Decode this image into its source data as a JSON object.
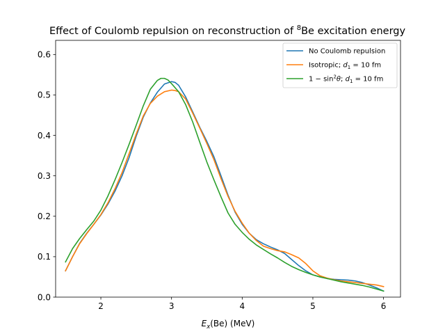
{
  "chart_data": {
    "type": "line",
    "title_main": "Effect of Coulomb repulsion on reconstruction of ",
    "title_sup": "8",
    "title_tail": "Be excitation energy",
    "xlabel_var": "E",
    "xlabel_sub": "x",
    "xlabel_tail": "(Be) (MeV)",
    "xlim": [
      1.36,
      6.24
    ],
    "ylim": [
      0.0,
      0.635
    ],
    "xticks": [
      2,
      3,
      4,
      5,
      6
    ],
    "xtick_labels": [
      "2",
      "3",
      "4",
      "5",
      "6"
    ],
    "yticks": [
      0.0,
      0.1,
      0.2,
      0.3,
      0.4,
      0.5,
      0.6
    ],
    "ytick_labels": [
      "0.0",
      "0.1",
      "0.2",
      "0.3",
      "0.4",
      "0.5",
      "0.6"
    ],
    "legend_position": "upper right",
    "series": [
      {
        "name": "No Coulomb repulsion",
        "legend_parts": [
          [
            "t",
            "No Coulomb repulsion"
          ]
        ],
        "color": "#1f77b4",
        "x": [
          1.5,
          1.6,
          1.7,
          1.8,
          1.9,
          2.0,
          2.1,
          2.2,
          2.3,
          2.4,
          2.5,
          2.6,
          2.7,
          2.8,
          2.9,
          3.0,
          3.05,
          3.1,
          3.2,
          3.3,
          3.4,
          3.5,
          3.6,
          3.7,
          3.8,
          3.9,
          4.0,
          4.1,
          4.2,
          4.3,
          4.4,
          4.5,
          4.6,
          4.7,
          4.8,
          4.9,
          5.0,
          5.1,
          5.2,
          5.3,
          5.4,
          5.5,
          5.6,
          5.7,
          5.8,
          5.9,
          6.0
        ],
        "y": [
          0.065,
          0.1,
          0.133,
          0.158,
          0.18,
          0.203,
          0.23,
          0.262,
          0.3,
          0.345,
          0.398,
          0.445,
          0.48,
          0.507,
          0.527,
          0.533,
          0.531,
          0.524,
          0.495,
          0.458,
          0.42,
          0.385,
          0.347,
          0.3,
          0.252,
          0.21,
          0.18,
          0.158,
          0.142,
          0.132,
          0.124,
          0.117,
          0.108,
          0.093,
          0.078,
          0.065,
          0.055,
          0.05,
          0.046,
          0.044,
          0.043,
          0.042,
          0.04,
          0.036,
          0.03,
          0.023,
          0.015
        ]
      },
      {
        "name": "Isotropic; d1 = 10 fm",
        "legend_parts": [
          [
            "t",
            "Isotropic; "
          ],
          [
            "i",
            "d"
          ],
          [
            "s",
            "1"
          ],
          [
            "t",
            " = 10 fm"
          ]
        ],
        "color": "#ff7f0e",
        "x": [
          1.5,
          1.6,
          1.7,
          1.8,
          1.9,
          2.0,
          2.1,
          2.2,
          2.3,
          2.4,
          2.5,
          2.6,
          2.7,
          2.8,
          2.9,
          3.0,
          3.05,
          3.1,
          3.2,
          3.3,
          3.4,
          3.5,
          3.6,
          3.7,
          3.8,
          3.9,
          4.0,
          4.1,
          4.2,
          4.3,
          4.4,
          4.5,
          4.6,
          4.7,
          4.8,
          4.9,
          5.0,
          5.1,
          5.2,
          5.3,
          5.4,
          5.5,
          5.6,
          5.7,
          5.8,
          5.9,
          6.0
        ],
        "y": [
          0.065,
          0.1,
          0.132,
          0.157,
          0.18,
          0.204,
          0.233,
          0.268,
          0.308,
          0.355,
          0.403,
          0.448,
          0.479,
          0.497,
          0.508,
          0.512,
          0.511,
          0.508,
          0.49,
          0.455,
          0.418,
          0.38,
          0.34,
          0.293,
          0.249,
          0.212,
          0.183,
          0.158,
          0.14,
          0.126,
          0.12,
          0.115,
          0.112,
          0.105,
          0.097,
          0.083,
          0.065,
          0.053,
          0.047,
          0.043,
          0.04,
          0.038,
          0.036,
          0.034,
          0.032,
          0.03,
          0.026
        ]
      },
      {
        "name": "1 − sin²θ; d1 = 10 fm",
        "legend_parts": [
          [
            "t",
            "1 − sin"
          ],
          [
            "p",
            "2"
          ],
          [
            "i",
            "θ"
          ],
          [
            "t",
            "; "
          ],
          [
            "i",
            "d"
          ],
          [
            "s",
            "1"
          ],
          [
            "t",
            " = 10 fm"
          ]
        ],
        "color": "#2ca02c",
        "x": [
          1.5,
          1.6,
          1.7,
          1.8,
          1.9,
          2.0,
          2.1,
          2.2,
          2.3,
          2.4,
          2.5,
          2.6,
          2.7,
          2.8,
          2.85,
          2.9,
          2.95,
          3.0,
          3.1,
          3.2,
          3.3,
          3.4,
          3.5,
          3.6,
          3.7,
          3.8,
          3.9,
          4.0,
          4.1,
          4.2,
          4.3,
          4.4,
          4.5,
          4.6,
          4.7,
          4.8,
          4.9,
          5.0,
          5.1,
          5.2,
          5.3,
          5.4,
          5.5,
          5.6,
          5.7,
          5.8,
          5.9,
          6.0
        ],
        "y": [
          0.087,
          0.12,
          0.145,
          0.167,
          0.188,
          0.215,
          0.25,
          0.29,
          0.333,
          0.378,
          0.425,
          0.473,
          0.514,
          0.536,
          0.541,
          0.541,
          0.537,
          0.528,
          0.508,
          0.476,
          0.433,
          0.383,
          0.334,
          0.29,
          0.248,
          0.208,
          0.18,
          0.16,
          0.143,
          0.129,
          0.118,
          0.107,
          0.097,
          0.086,
          0.076,
          0.068,
          0.061,
          0.055,
          0.05,
          0.046,
          0.042,
          0.038,
          0.035,
          0.032,
          0.029,
          0.025,
          0.02,
          0.015
        ]
      }
    ]
  }
}
